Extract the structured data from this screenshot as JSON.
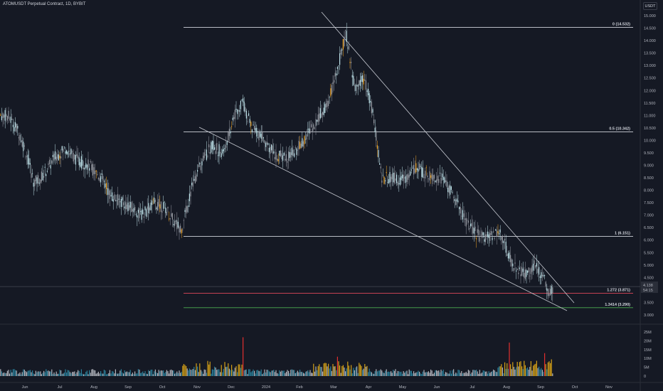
{
  "header": {
    "title": "ATOMUSDT Perpetual Contract, 1D, BYBIT",
    "currency": "USDT"
  },
  "price_axis": {
    "ticks": [
      "15.000",
      "14.500",
      "14.000",
      "13.500",
      "13.000",
      "12.500",
      "12.000",
      "11.500",
      "11.000",
      "10.500",
      "10.000",
      "9.500",
      "9.000",
      "8.500",
      "8.000",
      "7.500",
      "7.000",
      "6.500",
      "6.000",
      "5.500",
      "5.000",
      "4.500",
      "4.000",
      "3.500",
      "3.000"
    ],
    "current_price": "4.138",
    "countdown": "54:15"
  },
  "volume_axis": {
    "ticks": [
      "25M",
      "20M",
      "15M",
      "10M",
      "5M",
      "0"
    ]
  },
  "time_axis": {
    "ticks": [
      "Jun",
      "Jul",
      "Aug",
      "Sep",
      "Oct",
      "Nov",
      "Dec",
      "2024",
      "Feb",
      "Mar",
      "Apr",
      "May",
      "Jun",
      "Jul",
      "Aug",
      "Sep",
      "Oct",
      "Nov"
    ]
  },
  "fib_levels": [
    {
      "label": "0 (14.532)",
      "value": 14.532,
      "color": "#d1d4dc"
    },
    {
      "label": "0.5 (10.342)",
      "value": 10.342,
      "color": "#d1d4dc"
    },
    {
      "label": "1 (6.151)",
      "value": 6.151,
      "color": "#d1d4dc"
    },
    {
      "label": "1.272 (3.871)",
      "value": 3.871,
      "color": "#e0485a"
    },
    {
      "label": "1.3414 (3.290)",
      "value": 3.29,
      "color": "#4caf50"
    }
  ],
  "colors": {
    "background": "#151924",
    "candle_up": "#bfe3ea",
    "candle_down": "#9598a1",
    "accent": "#f5a623",
    "vol_up": "#2a7f9a",
    "vol_down": "#b0b3bb",
    "vol_high": "#d4a017",
    "vol_spike": "#e02f2f"
  },
  "chart_data": {
    "type": "candlestick",
    "title": "",
    "y_range": [
      2.8,
      15.4
    ],
    "volume_range": [
      0,
      27
    ],
    "points": [
      {
        "m": "2023-05-20",
        "p": 11.0
      },
      {
        "m": "2023-05-30",
        "p": 10.3
      },
      {
        "m": "2023-06-05",
        "p": 9.5
      },
      {
        "m": "2023-06-12",
        "p": 8.3
      },
      {
        "m": "2023-06-20",
        "p": 8.6
      },
      {
        "m": "2023-06-30",
        "p": 9.3
      },
      {
        "m": "2023-07-10",
        "p": 9.7
      },
      {
        "m": "2023-07-20",
        "p": 9.2
      },
      {
        "m": "2023-07-30",
        "p": 9.0
      },
      {
        "m": "2023-08-10",
        "p": 8.5
      },
      {
        "m": "2023-08-18",
        "p": 7.8
      },
      {
        "m": "2023-08-25",
        "p": 7.6
      },
      {
        "m": "2023-09-05",
        "p": 7.3
      },
      {
        "m": "2023-09-15",
        "p": 7.0
      },
      {
        "m": "2023-09-25",
        "p": 7.5
      },
      {
        "m": "2023-10-05",
        "p": 7.3
      },
      {
        "m": "2023-10-15",
        "p": 6.6
      },
      {
        "m": "2023-10-20",
        "p": 6.5
      },
      {
        "m": "2023-10-28",
        "p": 8.0
      },
      {
        "m": "2023-11-05",
        "p": 9.0
      },
      {
        "m": "2023-11-15",
        "p": 9.8
      },
      {
        "m": "2023-11-25",
        "p": 9.5
      },
      {
        "m": "2023-12-05",
        "p": 11.0
      },
      {
        "m": "2023-12-12",
        "p": 11.6
      },
      {
        "m": "2023-12-20",
        "p": 10.5
      },
      {
        "m": "2024-01-01",
        "p": 10.0
      },
      {
        "m": "2024-01-10",
        "p": 9.4
      },
      {
        "m": "2024-01-20",
        "p": 9.3
      },
      {
        "m": "2024-02-01",
        "p": 9.8
      },
      {
        "m": "2024-02-10",
        "p": 10.5
      },
      {
        "m": "2024-02-25",
        "p": 11.5
      },
      {
        "m": "2024-03-05",
        "p": 13.0
      },
      {
        "m": "2024-03-12",
        "p": 14.3
      },
      {
        "m": "2024-03-20",
        "p": 12.0
      },
      {
        "m": "2024-03-28",
        "p": 12.5
      },
      {
        "m": "2024-04-05",
        "p": 11.0
      },
      {
        "m": "2024-04-12",
        "p": 8.5
      },
      {
        "m": "2024-04-20",
        "p": 8.5
      },
      {
        "m": "2024-05-01",
        "p": 8.4
      },
      {
        "m": "2024-05-12",
        "p": 8.9
      },
      {
        "m": "2024-05-25",
        "p": 8.6
      },
      {
        "m": "2024-06-05",
        "p": 8.5
      },
      {
        "m": "2024-06-15",
        "p": 7.7
      },
      {
        "m": "2024-06-25",
        "p": 6.8
      },
      {
        "m": "2024-07-05",
        "p": 6.2
      },
      {
        "m": "2024-07-15",
        "p": 6.1
      },
      {
        "m": "2024-07-25",
        "p": 6.4
      },
      {
        "m": "2024-08-05",
        "p": 5.0
      },
      {
        "m": "2024-08-15",
        "p": 4.6
      },
      {
        "m": "2024-08-25",
        "p": 5.0
      },
      {
        "m": "2024-09-01",
        "p": 4.5
      },
      {
        "m": "2024-09-06",
        "p": 3.9
      },
      {
        "m": "2024-09-10",
        "p": 4.14
      }
    ]
  }
}
